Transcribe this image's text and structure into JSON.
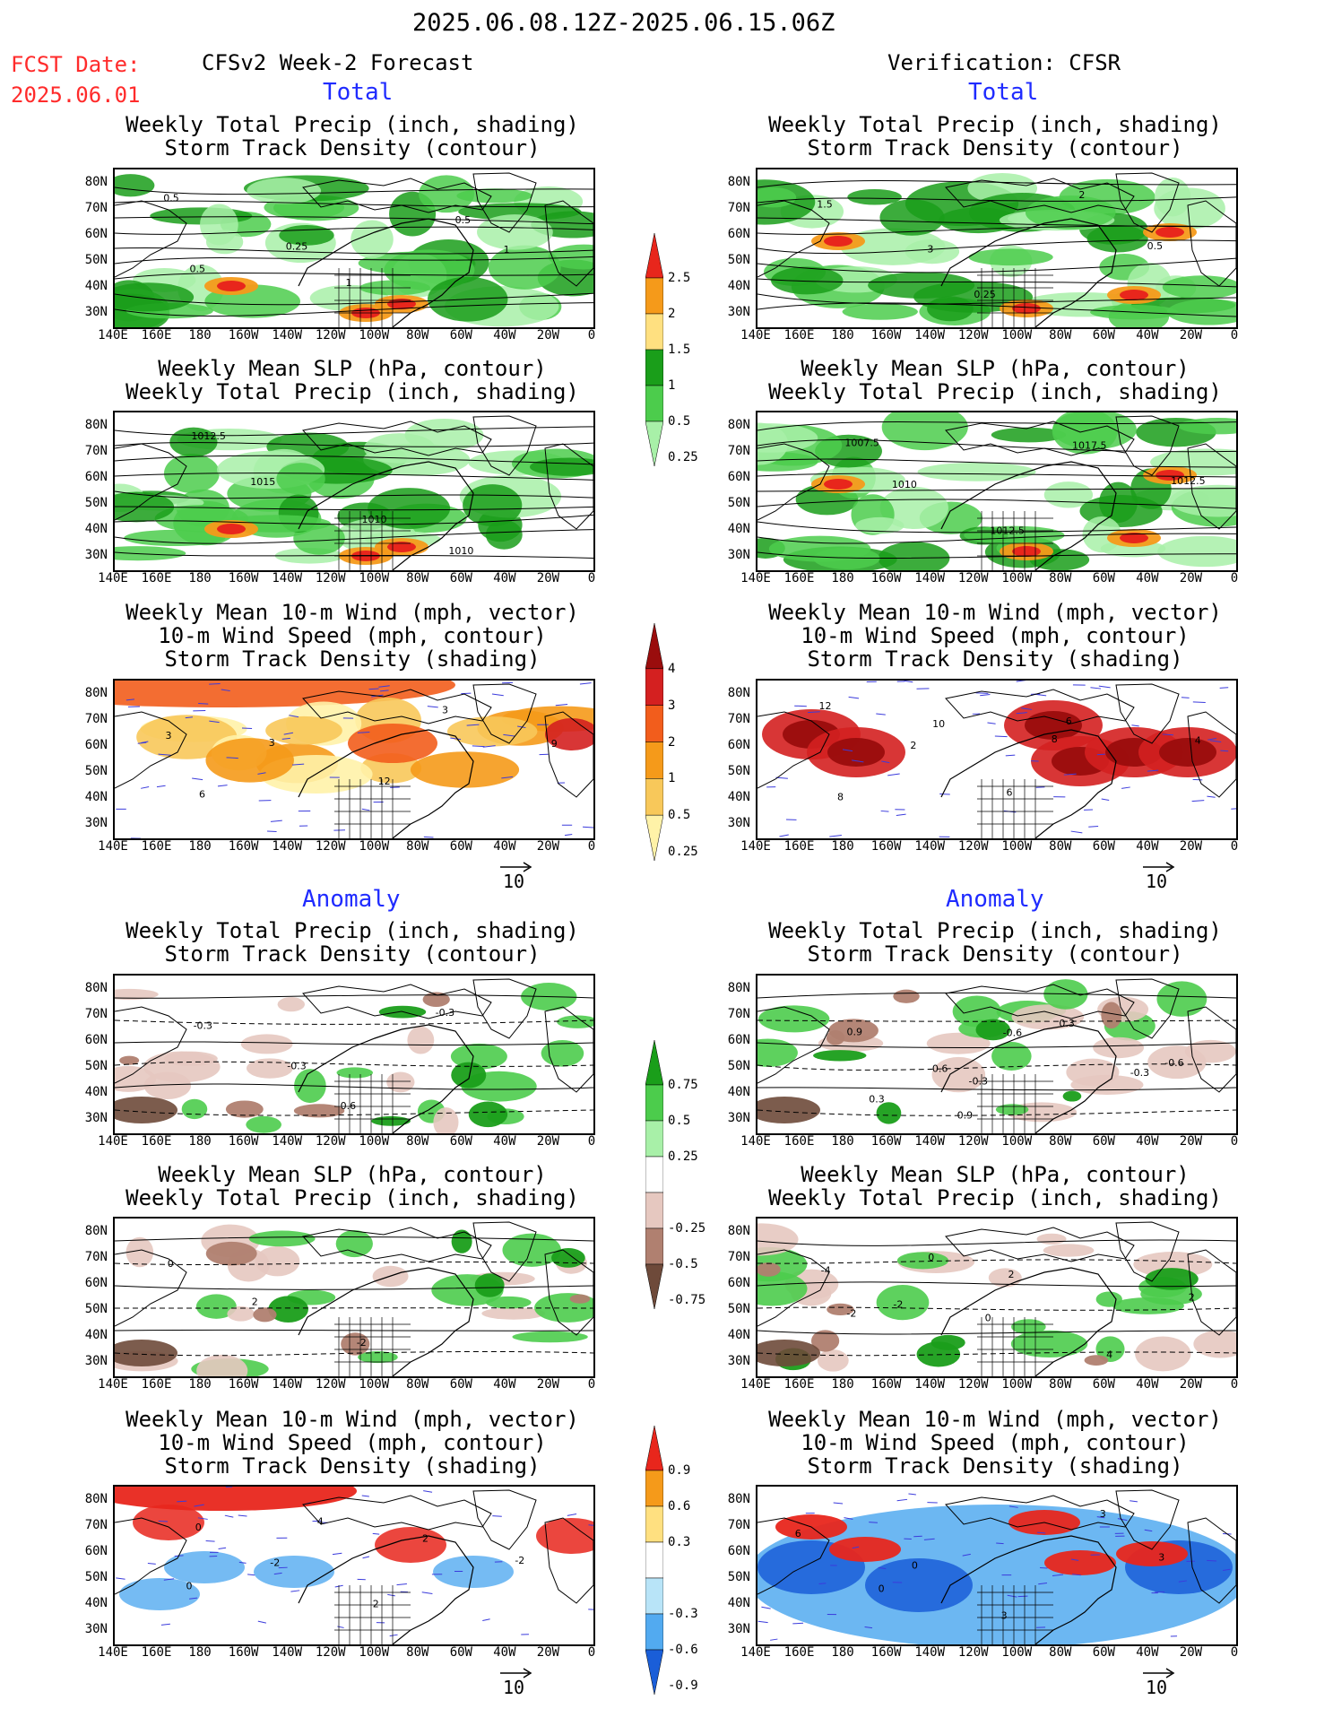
{
  "header": {
    "date_range": "2025.06.08.12Z-2025.06.15.06Z",
    "fcst_label": "FCST Date:",
    "fcst_date": "2025.06.01",
    "left_title": "CFSv2 Week-2 Forecast",
    "right_title": "Verification: CFSR"
  },
  "sections": {
    "total": "Total",
    "anomaly": "Anomaly"
  },
  "panel_titles": {
    "precip_storm": [
      "Weekly Total Precip (inch, shading)",
      "Storm Track Density (contour)"
    ],
    "slp_precip": [
      "Weekly Mean SLP (hPa, contour)",
      "Weekly Total Precip (inch, shading)"
    ],
    "wind_storm": [
      "Weekly Mean 10-m Wind (mph, vector)",
      "10-m Wind Speed (mph, contour)",
      "Storm Track Density (shading)"
    ]
  },
  "axes": {
    "lat_labels": [
      "80N",
      "70N",
      "60N",
      "50N",
      "40N",
      "30N"
    ],
    "lon_labels": [
      "140E",
      "160E",
      "180",
      "160W",
      "140W",
      "120W",
      "100W",
      "80W",
      "60W",
      "40W",
      "20W",
      "0"
    ]
  },
  "vector_reference": "10",
  "colorbars": {
    "precip_total": {
      "labels": [
        "2.5",
        "2",
        "1.5",
        "1",
        "0.5",
        "0.25"
      ],
      "colors": [
        "#e8261c",
        "#f59a1a",
        "#ffe080",
        "#1a9e1a",
        "#4ccc4c",
        "#a8f0a8"
      ]
    },
    "storm_total": {
      "labels": [
        "4",
        "3",
        "2",
        "1",
        "0.5",
        "0.25"
      ],
      "colors": [
        "#9a0d0d",
        "#d42020",
        "#f25d1c",
        "#f59a1a",
        "#f8c85a",
        "#fff2a8"
      ]
    },
    "precip_anom": {
      "labels": [
        "0.75",
        "0.5",
        "0.25",
        "-0.25",
        "-0.5",
        "-0.75"
      ],
      "colors": [
        "#1a9e1a",
        "#4ccc4c",
        "#a8f0a8",
        "#ffffff",
        "#e6c8c0",
        "#b08070",
        "#6e4a3a"
      ]
    },
    "storm_anom": {
      "labels": [
        "0.9",
        "0.6",
        "0.3",
        "-0.3",
        "-0.6",
        "-0.9"
      ],
      "colors": [
        "#e8261c",
        "#f59a1a",
        "#ffe080",
        "#ffffff",
        "#b8e4f8",
        "#52aaf0",
        "#1a5ed8"
      ]
    }
  },
  "contour_labels": {
    "fc_precip_storm": [
      "0.5",
      "0.25",
      "1",
      "0.5",
      "1",
      "0.5"
    ],
    "vf_precip_storm": [
      "1.5",
      "3",
      "0.25",
      "2",
      "0.5"
    ],
    "fc_slp": [
      "1012.5",
      "1015",
      "1010",
      "1010"
    ],
    "vf_slp": [
      "1007.5",
      "1010",
      "1012.5",
      "1017.5",
      "1012.5"
    ],
    "fc_wind": [
      "3",
      "3",
      "12",
      "3",
      "9",
      "6"
    ],
    "vf_wind": [
      "12",
      "2",
      "6",
      "6",
      "4",
      "8",
      "10",
      "8"
    ],
    "fc_precip_anom": [
      "-0.3",
      "-0.3",
      "0.6",
      "-0.3"
    ],
    "vf_precip_anom": [
      "0.9",
      "-0.6",
      "-0.3",
      "0.3",
      "-0.6",
      "0.3",
      "0.9",
      "-0.6",
      "-0.3"
    ],
    "fc_slp_anom": [
      "0",
      "2",
      "-2"
    ],
    "vf_slp_anom": [
      "-4",
      "-2",
      "0",
      "4",
      "2",
      "-2",
      "0",
      "2"
    ],
    "fc_wind_anom": [
      "0",
      "-2",
      "2",
      "2",
      "-2",
      "0",
      "4"
    ],
    "vf_wind_anom": [
      "6",
      "0",
      "3",
      "3",
      "3",
      "0"
    ]
  },
  "colors": {
    "section_blue": "#1f2bff",
    "fcst_red": "#ff2b2b"
  }
}
